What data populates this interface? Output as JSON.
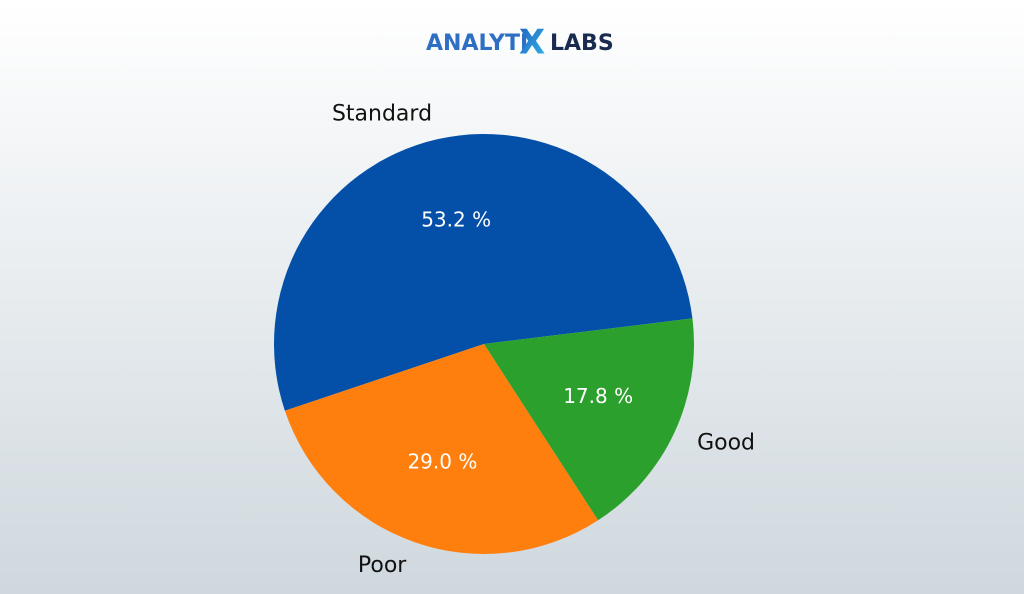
{
  "logo": [
    "ANALYTI",
    "X",
    "LABS"
  ],
  "chart_data": {
    "type": "pie",
    "categories": [
      "Standard",
      "Poor",
      "Good"
    ],
    "values": [
      53.2,
      29.0,
      17.8
    ],
    "value_labels": [
      "53.2 %",
      "29.0 %",
      "17.8 %"
    ],
    "colors": [
      "#0450a8",
      "#ff7f0e",
      "#2ca02c"
    ]
  }
}
